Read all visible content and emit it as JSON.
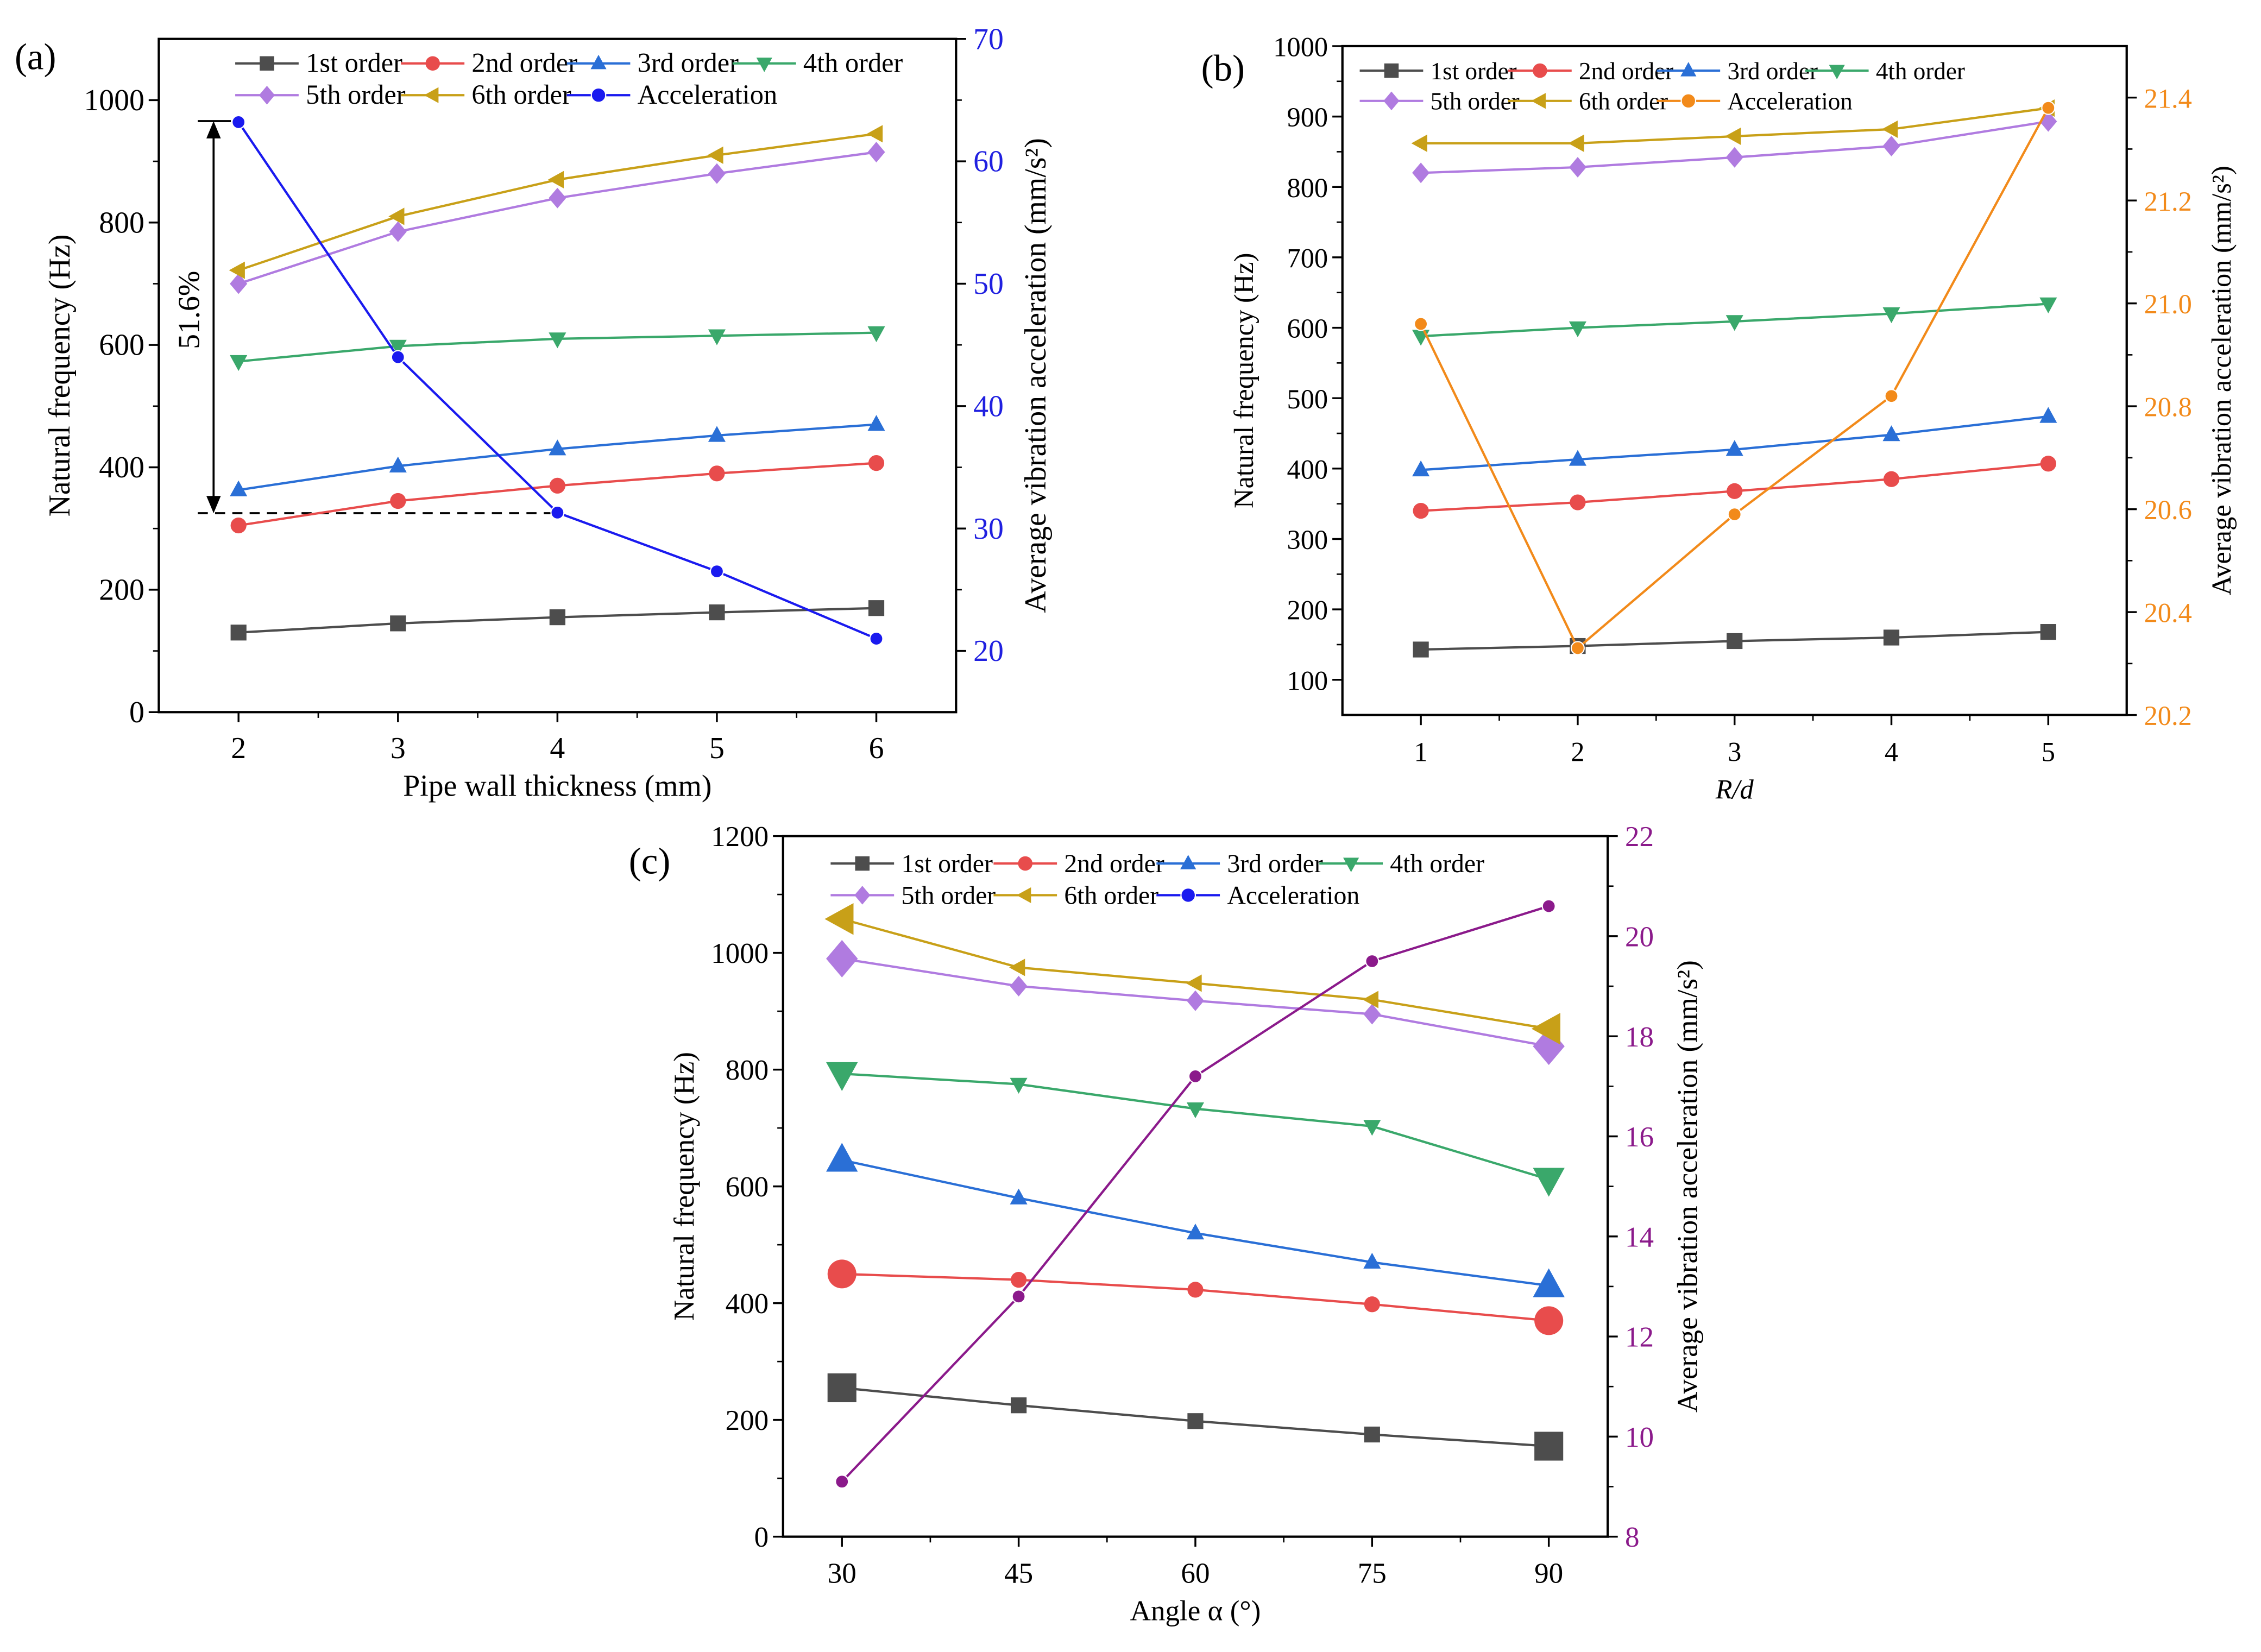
{
  "chart_data": [
    {
      "panel_label": "(a)",
      "type": "line",
      "x": [
        2,
        3,
        4,
        5,
        6
      ],
      "xlabel": "Pipe wall thickness (mm)",
      "ylabel": "Natural frequency (Hz)",
      "y2label": "Average vibration acceleration (mm/s²)",
      "xlim": [
        1.5,
        6.5
      ],
      "ylim": [
        0,
        1100
      ],
      "y2lim": [
        15,
        70
      ],
      "xticks": [
        2,
        3,
        4,
        5,
        6
      ],
      "yticks": [
        0,
        200,
        400,
        600,
        800,
        1000
      ],
      "y2ticks": [
        20,
        30,
        40,
        50,
        60,
        70
      ],
      "legend": "top",
      "annotation": "51.6%",
      "series": [
        {
          "name": "1st order",
          "axis": "left",
          "marker": "square",
          "color": "#4d4d4d",
          "values": [
            130,
            145,
            155,
            163,
            170
          ]
        },
        {
          "name": "2nd order",
          "axis": "left",
          "marker": "circle",
          "color": "#e84c4c",
          "values": [
            305,
            345,
            370,
            390,
            407
          ]
        },
        {
          "name": "3rd order",
          "axis": "left",
          "marker": "triangle-up",
          "color": "#2a6fd6",
          "values": [
            363,
            402,
            430,
            452,
            470
          ]
        },
        {
          "name": "4th order",
          "axis": "left",
          "marker": "triangle-down",
          "color": "#3aa86b",
          "values": [
            573,
            598,
            610,
            615,
            620
          ]
        },
        {
          "name": "5th order",
          "axis": "left",
          "marker": "diamond",
          "color": "#b07be0",
          "values": [
            700,
            785,
            840,
            880,
            915
          ]
        },
        {
          "name": "6th order",
          "axis": "left",
          "marker": "triangle-left",
          "color": "#c8a018",
          "values": [
            722,
            810,
            870,
            910,
            945
          ]
        },
        {
          "name": "Acceleration",
          "axis": "right",
          "marker": "ball",
          "color": "#1a1aef",
          "legend_color": "#1a1aef",
          "values": [
            63.2,
            44.0,
            31.3,
            26.5,
            21.0
          ]
        }
      ],
      "right_axis_color": "#2020e0"
    },
    {
      "panel_label": "(b)",
      "type": "line",
      "x": [
        1,
        2,
        3,
        4,
        5
      ],
      "xlabel": "R/d",
      "ylabel": "Natural frequency (Hz)",
      "y2label": "Average vibration acceleration (mm/s²)",
      "xlim": [
        0.5,
        5.5
      ],
      "ylim": [
        50,
        1000
      ],
      "y2lim": [
        20.2,
        21.5
      ],
      "xticks": [
        1,
        2,
        3,
        4,
        5
      ],
      "yticks": [
        100,
        200,
        300,
        400,
        500,
        600,
        700,
        800,
        900,
        1000
      ],
      "y2ticks": [
        20.2,
        20.4,
        20.6,
        20.8,
        21.0,
        21.2,
        21.4
      ],
      "legend": "top",
      "series": [
        {
          "name": "1st order",
          "axis": "left",
          "marker": "square",
          "color": "#4d4d4d",
          "values": [
            143,
            148,
            155,
            160,
            168
          ]
        },
        {
          "name": "2nd order",
          "axis": "left",
          "marker": "circle",
          "color": "#e84c4c",
          "values": [
            340,
            352,
            368,
            385,
            407
          ]
        },
        {
          "name": "3rd order",
          "axis": "left",
          "marker": "triangle-up",
          "color": "#2a6fd6",
          "values": [
            398,
            413,
            427,
            448,
            474
          ]
        },
        {
          "name": "4th order",
          "axis": "left",
          "marker": "triangle-down",
          "color": "#3aa86b",
          "values": [
            588,
            600,
            609,
            620,
            634
          ]
        },
        {
          "name": "5th order",
          "axis": "left",
          "marker": "diamond",
          "color": "#b07be0",
          "values": [
            820,
            828,
            842,
            858,
            893
          ]
        },
        {
          "name": "6th order",
          "axis": "left",
          "marker": "triangle-left",
          "color": "#c8a018",
          "values": [
            862,
            862,
            872,
            882,
            912
          ]
        },
        {
          "name": "Acceleration",
          "axis": "right",
          "marker": "ball",
          "color": "#f28a1a",
          "legend_color": "#f28a1a",
          "values": [
            20.96,
            20.33,
            20.59,
            20.82,
            21.38
          ]
        }
      ],
      "right_axis_color": "#f28a1a"
    },
    {
      "panel_label": "(c)",
      "type": "line",
      "x": [
        30,
        45,
        60,
        75,
        90
      ],
      "xlabel": "Angle α (°)",
      "ylabel": "Natural frequency (Hz)",
      "y2label": "Average vibration acceleration (mm/s²)",
      "xlim": [
        25,
        95
      ],
      "ylim": [
        0,
        1200
      ],
      "y2lim": [
        8,
        22
      ],
      "xticks": [
        30,
        45,
        60,
        75,
        90
      ],
      "yticks": [
        0,
        200,
        400,
        600,
        800,
        1000,
        1200
      ],
      "y2ticks": [
        8,
        10,
        12,
        14,
        16,
        18,
        20,
        22
      ],
      "legend": "top",
      "emphasize_endpoints": true,
      "series": [
        {
          "name": "1st order",
          "axis": "left",
          "marker": "square",
          "color": "#4d4d4d",
          "values": [
            255,
            225,
            198,
            175,
            155
          ]
        },
        {
          "name": "2nd order",
          "axis": "left",
          "marker": "circle",
          "color": "#e84c4c",
          "values": [
            450,
            440,
            423,
            398,
            370
          ]
        },
        {
          "name": "3rd order",
          "axis": "left",
          "marker": "triangle-up",
          "color": "#2a6fd6",
          "values": [
            645,
            580,
            520,
            470,
            430
          ]
        },
        {
          "name": "4th order",
          "axis": "left",
          "marker": "triangle-down",
          "color": "#3aa86b",
          "values": [
            793,
            775,
            733,
            703,
            612
          ]
        },
        {
          "name": "5th order",
          "axis": "left",
          "marker": "diamond",
          "color": "#b07be0",
          "values": [
            990,
            943,
            918,
            895,
            840
          ]
        },
        {
          "name": "6th order",
          "axis": "left",
          "marker": "triangle-left",
          "color": "#c8a018",
          "values": [
            1058,
            975,
            948,
            920,
            870
          ]
        },
        {
          "name": "Acceleration",
          "axis": "right",
          "marker": "ball",
          "color": "#8b1a8b",
          "legend_color": "#1a1aef",
          "values": [
            9.1,
            12.8,
            17.2,
            19.5,
            20.6
          ]
        }
      ],
      "right_axis_color": "#8b1a8b"
    }
  ]
}
